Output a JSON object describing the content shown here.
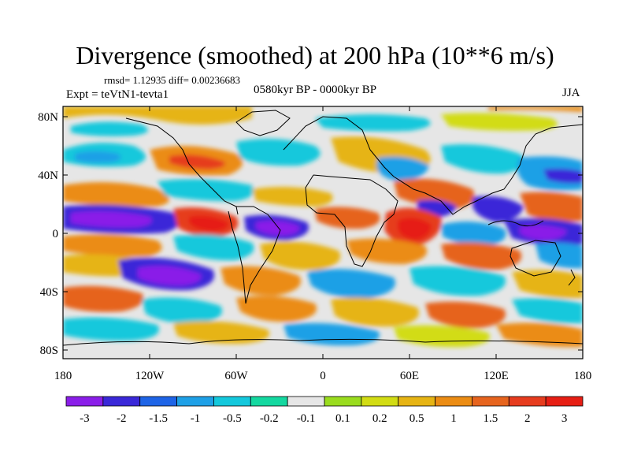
{
  "title": "Divergence (smoothed) at 200 hPa (10**6 m/s)",
  "stats": "rmsd= 1.12935 diff= 0.00236683",
  "experiment": "Expt = teVtN1-tevta1",
  "period": "0580kyr BP - 0000kyr BP",
  "season": "JJA",
  "axes": {
    "lat_ticks": [
      "80N",
      "40N",
      "0",
      "40S",
      "80S"
    ],
    "lon_ticks": [
      "180",
      "120W",
      "60W",
      "0",
      "60E",
      "120E",
      "180"
    ]
  },
  "colorbar": {
    "labels": [
      "-3",
      "-2",
      "-1.5",
      "-1",
      "-0.5",
      "-0.2",
      "-0.1",
      "0.1",
      "0.2",
      "0.5",
      "1",
      "1.5",
      "2",
      "3"
    ],
    "colors": [
      "#8a1ee8",
      "#3a28d8",
      "#1e64e6",
      "#1ea0e6",
      "#14c8dc",
      "#14d8a0",
      "#e6e6e6",
      "#9adc1e",
      "#d2dc14",
      "#e6b414",
      "#eb8c14",
      "#e6641e",
      "#e63c1e",
      "#e61e14"
    ]
  }
}
